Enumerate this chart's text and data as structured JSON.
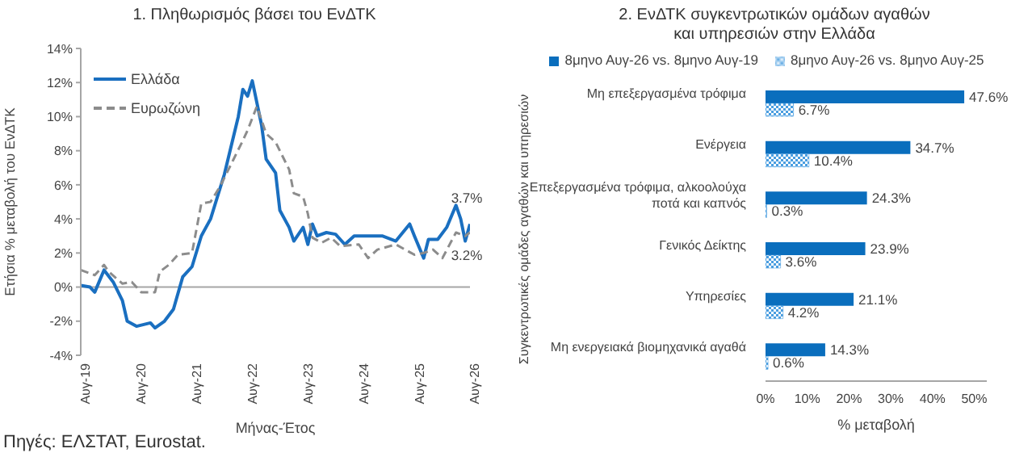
{
  "chart_data": [
    {
      "type": "line",
      "title": "1. Πληθωρισμός βάσει του ΕνΔΤΚ",
      "xlabel": "Μήνας-Έτος",
      "ylabel": "Ετήσια % μεταβολή του ΕνΔΤΚ",
      "series": [
        {
          "name": "Ελλάδα",
          "color": "#1a6fc0",
          "line_style": "solid",
          "x": [
            "2019-08",
            "2019-10",
            "2019-11",
            "2020-01",
            "2020-03",
            "2020-05",
            "2020-06",
            "2020-08",
            "2020-11",
            "2020-12",
            "2021-02",
            "2021-04",
            "2021-06",
            "2021-08",
            "2021-10",
            "2021-12",
            "2022-03",
            "2022-06",
            "2022-07",
            "2022-08",
            "2022-09",
            "2022-11",
            "2022-12",
            "2023-02",
            "2023-03",
            "2023-05",
            "2023-06",
            "2023-08",
            "2023-09",
            "2023-10",
            "2023-11",
            "2024-01",
            "2024-03",
            "2024-05",
            "2024-07",
            "2024-09",
            "2025-01",
            "2025-04",
            "2025-07",
            "2025-08",
            "2025-10",
            "2025-11",
            "2026-01",
            "2026-03",
            "2026-05",
            "2026-06",
            "2026-07",
            "2026-08"
          ],
          "values": [
            0.1,
            0.0,
            -0.3,
            1.0,
            0.3,
            -0.8,
            -2.0,
            -2.3,
            -2.1,
            -2.4,
            -2.0,
            -1.3,
            0.6,
            1.2,
            3.0,
            4.0,
            6.6,
            10.0,
            11.6,
            11.2,
            12.1,
            9.5,
            7.5,
            6.7,
            4.5,
            3.5,
            2.7,
            3.5,
            2.5,
            3.7,
            3.0,
            3.2,
            3.1,
            2.5,
            3.0,
            3.0,
            3.0,
            2.7,
            3.7,
            3.0,
            1.7,
            2.8,
            2.8,
            3.5,
            4.8,
            4.0,
            2.7,
            3.7
          ]
        },
        {
          "name": "Ευρωζώνη",
          "color": "#8c8c8c",
          "line_style": "dashed",
          "x": [
            "2019-08",
            "2019-11",
            "2020-01",
            "2020-02",
            "2020-05",
            "2020-07",
            "2020-09",
            "2020-12",
            "2021-01",
            "2021-03",
            "2021-05",
            "2021-08",
            "2021-10",
            "2021-12",
            "2022-02",
            "2022-05",
            "2022-07",
            "2022-08",
            "2022-10",
            "2022-12",
            "2023-02",
            "2023-05",
            "2023-06",
            "2023-08",
            "2023-09",
            "2023-10",
            "2023-12",
            "2024-02",
            "2024-04",
            "2024-08",
            "2024-10",
            "2024-12",
            "2025-04",
            "2025-06",
            "2025-08",
            "2025-10",
            "2025-12",
            "2026-02",
            "2026-05",
            "2026-07",
            "2026-08"
          ],
          "values": [
            1.0,
            0.7,
            1.3,
            0.9,
            0.2,
            0.3,
            -0.3,
            -0.3,
            0.9,
            1.3,
            1.9,
            2.0,
            4.9,
            5.0,
            5.9,
            7.5,
            8.6,
            9.2,
            10.6,
            9.0,
            8.5,
            6.9,
            5.5,
            5.3,
            4.3,
            2.9,
            2.6,
            2.9,
            2.4,
            2.5,
            1.7,
            2.2,
            2.5,
            2.2,
            1.9,
            2.0,
            2.2,
            1.7,
            3.2,
            3.0,
            3.2
          ]
        }
      ],
      "xlim": [
        "2019-08",
        "2026-08"
      ],
      "xticks": [
        {
          "value": "2019-08",
          "label": "Αυγ-19"
        },
        {
          "value": "2020-08",
          "label": "Αυγ-20"
        },
        {
          "value": "2021-08",
          "label": "Αυγ-21"
        },
        {
          "value": "2022-08",
          "label": "Αυγ-22"
        },
        {
          "value": "2023-08",
          "label": "Αυγ-23"
        },
        {
          "value": "2024-08",
          "label": "Αυγ-24"
        },
        {
          "value": "2025-08",
          "label": "Αυγ-25"
        },
        {
          "value": "2026-08",
          "label": "Αυγ-26"
        }
      ],
      "ylim": [
        -4,
        14
      ],
      "yticks": [
        {
          "value": -4,
          "label": "-4%"
        },
        {
          "value": -2,
          "label": "-2%"
        },
        {
          "value": 0,
          "label": "0%"
        },
        {
          "value": 2,
          "label": "2%"
        },
        {
          "value": 4,
          "label": "4%"
        },
        {
          "value": 6,
          "label": "6%"
        },
        {
          "value": 8,
          "label": "8%"
        },
        {
          "value": 10,
          "label": "10%"
        },
        {
          "value": 12,
          "label": "12%"
        },
        {
          "value": 14,
          "label": "14%"
        }
      ],
      "ref_lines": [
        {
          "axis": "y",
          "value": 0,
          "color": "#a6a6a6"
        }
      ],
      "legend": "top left",
      "marker": "none",
      "annotations": [
        {
          "text": "3.7%",
          "x": "2026-08",
          "y": 3.7
        },
        {
          "text": "3.2%",
          "x": "2026-08",
          "y": 3.2
        },
        "Πηγές: ΕΛΣΤΑΤ, Eurostat."
      ]
    },
    {
      "type": "bar",
      "orientation": "horizontal",
      "title": "2. ΕνΔΤΚ συγκεντρωτικών ομάδων αγαθών και υπηρεσιών στην Ελλάδα",
      "xlabel": "% μεταβολή",
      "ylabel": "Συγκεντρωτικές ομάδες αγαθών και υπηρεσιών",
      "categories": [
        "Μη επεξεργασμένα τρόφιμα",
        "Ενέργεια",
        "Επεξεργασμένα τρόφιμα, αλκοολούχα ποτά και καπνός",
        "Γενικός Δείκτης",
        "Υπηρεσίες",
        "Μη ενεργειακά βιομηχανικά αγαθά"
      ],
      "series": [
        {
          "name": "8μηνο Αυγ-26 vs. 8μηνο Αυγ-19",
          "color": "#0a6ebd",
          "values": [
            47.6,
            34.7,
            24.3,
            23.9,
            21.1,
            14.3
          ],
          "value_labels": [
            "47.6%",
            "34.7%",
            "24.3%",
            "23.9%",
            "21.1%",
            "14.3%"
          ]
        },
        {
          "name": "8μηνο Αυγ-26 vs. 8μηνο Αυγ-25",
          "color": "#4a9ee0",
          "values": [
            6.7,
            10.4,
            0.3,
            3.6,
            4.2,
            0.6
          ],
          "value_labels": [
            "6.7%",
            "10.4%",
            "0.3%",
            "3.6%",
            "4.2%",
            "0.6%"
          ]
        }
      ],
      "xlim": [
        0,
        53
      ],
      "xticks": [
        {
          "value": 0,
          "label": "0%"
        },
        {
          "value": 10,
          "label": "10%"
        },
        {
          "value": 20,
          "label": "20%"
        },
        {
          "value": 30,
          "label": "30%"
        },
        {
          "value": 40,
          "label": "40%"
        },
        {
          "value": 50,
          "label": "50%"
        }
      ],
      "legend": "top"
    }
  ]
}
